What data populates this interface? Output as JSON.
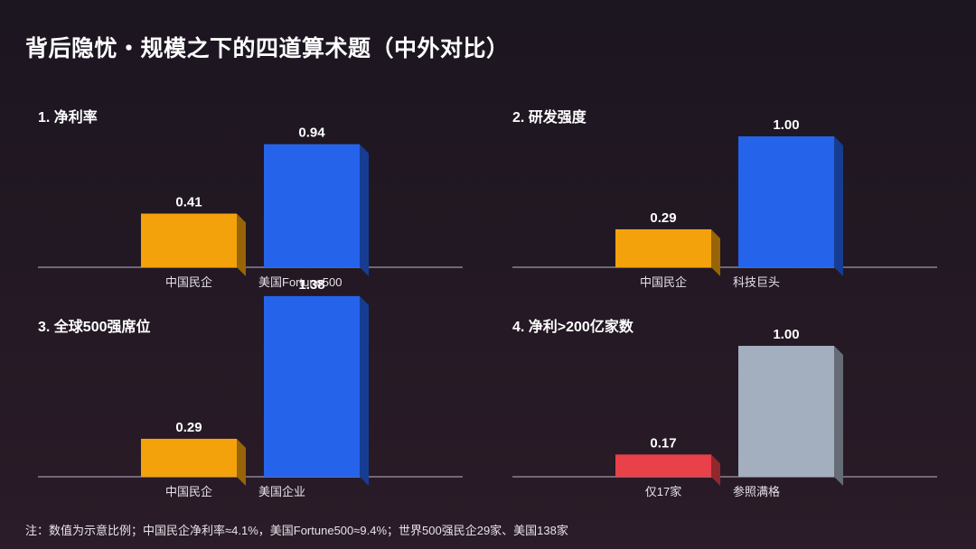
{
  "header": {
    "title": "背后隐忧・规模之下的四道算术题（中外对比）"
  },
  "footnote": "注：数值为示意比例；中国民企净利率≈4.1%，美国Fortune500≈9.4%；世界500强民企29家、美国138家",
  "colors": {
    "orange": "#f4a20c",
    "blue": "#2563eb",
    "red": "#e8414a",
    "gray": "#a3aebf",
    "axis": "#8a8290"
  },
  "chart_data": [
    {
      "type": "bar",
      "title": "1. 净利率",
      "categories": [
        "中国民企",
        "美国Fortune500"
      ],
      "values": [
        0.41,
        0.94
      ],
      "value_labels": [
        "0.41",
        "0.94"
      ],
      "bar_colors": [
        "orange",
        "blue"
      ]
    },
    {
      "type": "bar",
      "title": "2. 研发强度",
      "categories": [
        "中国民企",
        "科技巨头"
      ],
      "values": [
        0.29,
        1.0
      ],
      "value_labels": [
        "0.29",
        "1.00"
      ],
      "bar_colors": [
        "orange",
        "blue"
      ]
    },
    {
      "type": "bar",
      "title": "3. 全球500强席位",
      "categories": [
        "中国民企",
        "美国企业"
      ],
      "values": [
        0.29,
        1.38
      ],
      "value_labels": [
        "0.29",
        "1.38"
      ],
      "bar_colors": [
        "orange",
        "blue"
      ]
    },
    {
      "type": "bar",
      "title": "4. 净利>200亿家数",
      "categories": [
        "仅17家",
        "参照满格"
      ],
      "values": [
        0.17,
        1.0
      ],
      "value_labels": [
        "0.17",
        "1.00"
      ],
      "bar_colors": [
        "red",
        "gray"
      ]
    }
  ]
}
